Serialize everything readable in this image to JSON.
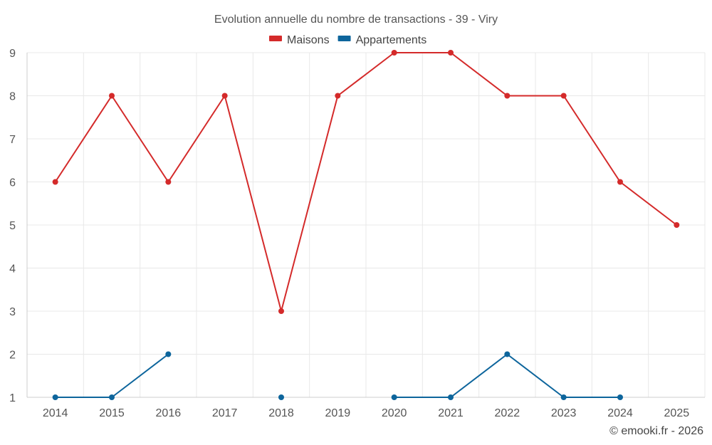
{
  "chart_data": {
    "type": "line",
    "title": "Evolution annuelle du nombre de transactions - 39 - Viry",
    "categories": [
      "2014",
      "2015",
      "2016",
      "2017",
      "2018",
      "2019",
      "2020",
      "2021",
      "2022",
      "2023",
      "2024",
      "2025"
    ],
    "ylim": [
      1,
      9
    ],
    "yticks": [
      "1",
      "2",
      "3",
      "4",
      "5",
      "6",
      "7",
      "8",
      "9"
    ],
    "grid": true,
    "legend_position": "top-center",
    "series": [
      {
        "name": "Maisons",
        "color": "#d42a2a",
        "values": [
          6,
          8,
          6,
          8,
          3,
          8,
          9,
          9,
          8,
          8,
          6,
          5
        ]
      },
      {
        "name": "Appartements",
        "color": "#0d659c",
        "values": [
          1,
          1,
          2,
          null,
          1,
          null,
          1,
          1,
          2,
          1,
          1,
          null
        ]
      }
    ]
  },
  "credit": "© emooki.fr - 2026"
}
